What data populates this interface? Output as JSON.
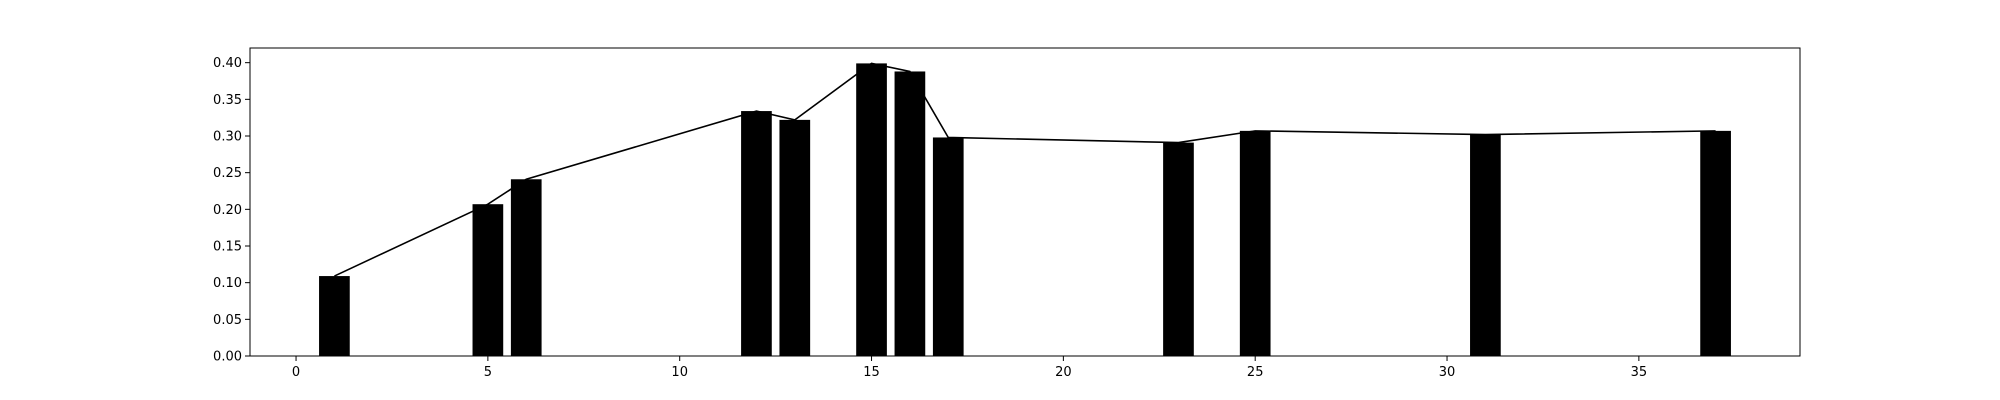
{
  "chart_data": {
    "type": "bar",
    "title": "",
    "xlabel": "",
    "ylabel": "",
    "x": [
      1,
      5,
      6,
      12,
      13,
      15,
      16,
      17,
      23,
      25,
      31,
      37
    ],
    "values": [
      0.109,
      0.207,
      0.241,
      0.334,
      0.322,
      0.399,
      0.388,
      0.298,
      0.291,
      0.307,
      0.302,
      0.307
    ],
    "overlay_line": true,
    "xlim": [
      -1.2,
      39.2
    ],
    "ylim": [
      0,
      0.42
    ],
    "xticks": [
      0,
      5,
      10,
      15,
      20,
      25,
      30,
      35
    ],
    "yticks": [
      0.0,
      0.05,
      0.1,
      0.15,
      0.2,
      0.25,
      0.3,
      0.35,
      0.4
    ],
    "xtick_labels": [
      "0",
      "5",
      "10",
      "15",
      "20",
      "25",
      "30",
      "35"
    ],
    "ytick_labels": [
      "0.00",
      "0.05",
      "0.10",
      "0.15",
      "0.20",
      "0.25",
      "0.30",
      "0.35",
      "0.40"
    ],
    "grid": false,
    "bar_color": "#000000",
    "line_color": "#000000"
  }
}
